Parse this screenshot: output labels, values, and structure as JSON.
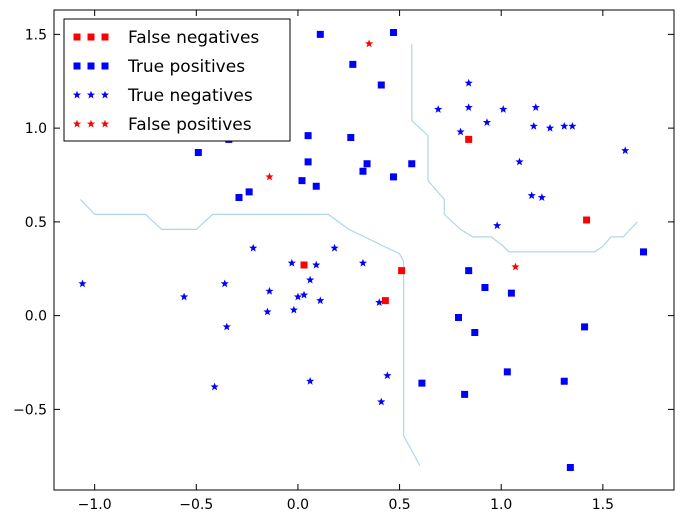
{
  "chart_data": {
    "type": "scatter",
    "title": "",
    "xlabel": "",
    "ylabel": "",
    "xlim": [
      -1.2,
      1.85
    ],
    "ylim": [
      -0.93,
      1.63
    ],
    "xticks": [
      -1.0,
      -0.5,
      0.0,
      0.5,
      1.0,
      1.5
    ],
    "xtick_labels": [
      "−1.0",
      "−0.5",
      "0.0",
      "0.5",
      "1.0",
      "1.5"
    ],
    "yticks": [
      -0.5,
      0.0,
      0.5,
      1.0,
      1.5
    ],
    "ytick_labels": [
      "−0.5",
      "0.0",
      "0.5",
      "1.0",
      "1.5"
    ],
    "grid": false,
    "legend_position": "top-left",
    "series": [
      {
        "name": "False negatives",
        "marker": "square",
        "color": "#ff0000",
        "x": [
          0.84,
          1.42,
          0.03,
          0.51,
          0.43
        ],
        "y": [
          0.94,
          0.51,
          0.27,
          0.24,
          0.08
        ]
      },
      {
        "name": "True positives",
        "marker": "square",
        "color": "#0000ff",
        "x": [
          0.11,
          0.47,
          0.27,
          -0.49,
          0.41,
          0.05,
          0.26,
          -0.34,
          0.05,
          0.34,
          0.56,
          0.32,
          0.47,
          0.02,
          0.09,
          -0.24,
          -0.29,
          1.7,
          0.84,
          0.92,
          1.05,
          0.79,
          1.41,
          0.87,
          1.03,
          0.61,
          1.31,
          0.82,
          1.34
        ],
        "y": [
          1.5,
          1.51,
          1.34,
          0.87,
          1.23,
          0.96,
          0.95,
          0.94,
          0.82,
          0.81,
          0.81,
          0.77,
          0.74,
          0.72,
          0.69,
          0.66,
          0.63,
          0.34,
          0.24,
          0.15,
          0.12,
          -0.01,
          -0.06,
          -0.09,
          -0.3,
          -0.36,
          -0.35,
          -0.42,
          -0.81
        ]
      },
      {
        "name": "True negatives",
        "marker": "star",
        "color": "#0000ff",
        "x": [
          0.84,
          0.69,
          0.84,
          1.01,
          1.17,
          0.93,
          0.8,
          1.16,
          1.24,
          1.31,
          1.35,
          1.61,
          1.09,
          1.15,
          1.2,
          0.98,
          -1.06,
          -0.56,
          -0.36,
          -0.35,
          -0.22,
          -0.15,
          -0.14,
          -0.03,
          -0.02,
          0.0,
          0.03,
          0.06,
          0.06,
          0.09,
          0.11,
          0.18,
          0.32,
          0.4,
          0.44,
          0.41,
          -0.41
        ],
        "y": [
          1.24,
          1.1,
          1.11,
          1.1,
          1.11,
          1.03,
          0.98,
          1.01,
          1.0,
          1.01,
          1.01,
          0.88,
          0.82,
          0.64,
          0.63,
          0.48,
          0.17,
          0.1,
          0.17,
          -0.06,
          0.36,
          0.02,
          0.13,
          0.28,
          0.03,
          0.1,
          0.11,
          0.19,
          -0.35,
          0.27,
          0.08,
          0.36,
          0.28,
          0.07,
          -0.32,
          -0.46,
          -0.38
        ]
      },
      {
        "name": "False positives",
        "marker": "star",
        "color": "#ff0000",
        "x": [
          0.35,
          -0.14,
          1.07
        ],
        "y": [
          1.45,
          0.74,
          0.26
        ]
      }
    ],
    "decision_boundary": {
      "color": "#add8e6",
      "segments": [
        {
          "x": [
            -1.07,
            -1.0,
            -0.75,
            -0.67,
            -0.5,
            -0.42,
            0.15,
            0.25,
            0.5,
            0.52,
            0.52,
            0.6,
            0.6
          ],
          "y": [
            0.62,
            0.54,
            0.54,
            0.46,
            0.46,
            0.54,
            0.54,
            0.46,
            0.33,
            0.29,
            -0.64,
            -0.8,
            -0.8
          ]
        },
        {
          "x": [
            0.56,
            0.56,
            0.64,
            0.64,
            0.72,
            0.72,
            0.8,
            0.86,
            0.95,
            1.0,
            1.04,
            1.14,
            1.46,
            1.5,
            1.54,
            1.6,
            1.67
          ],
          "y": [
            1.45,
            1.04,
            0.96,
            0.72,
            0.62,
            0.54,
            0.46,
            0.42,
            0.42,
            0.38,
            0.34,
            0.34,
            0.34,
            0.37,
            0.42,
            0.42,
            0.5
          ]
        }
      ]
    }
  }
}
